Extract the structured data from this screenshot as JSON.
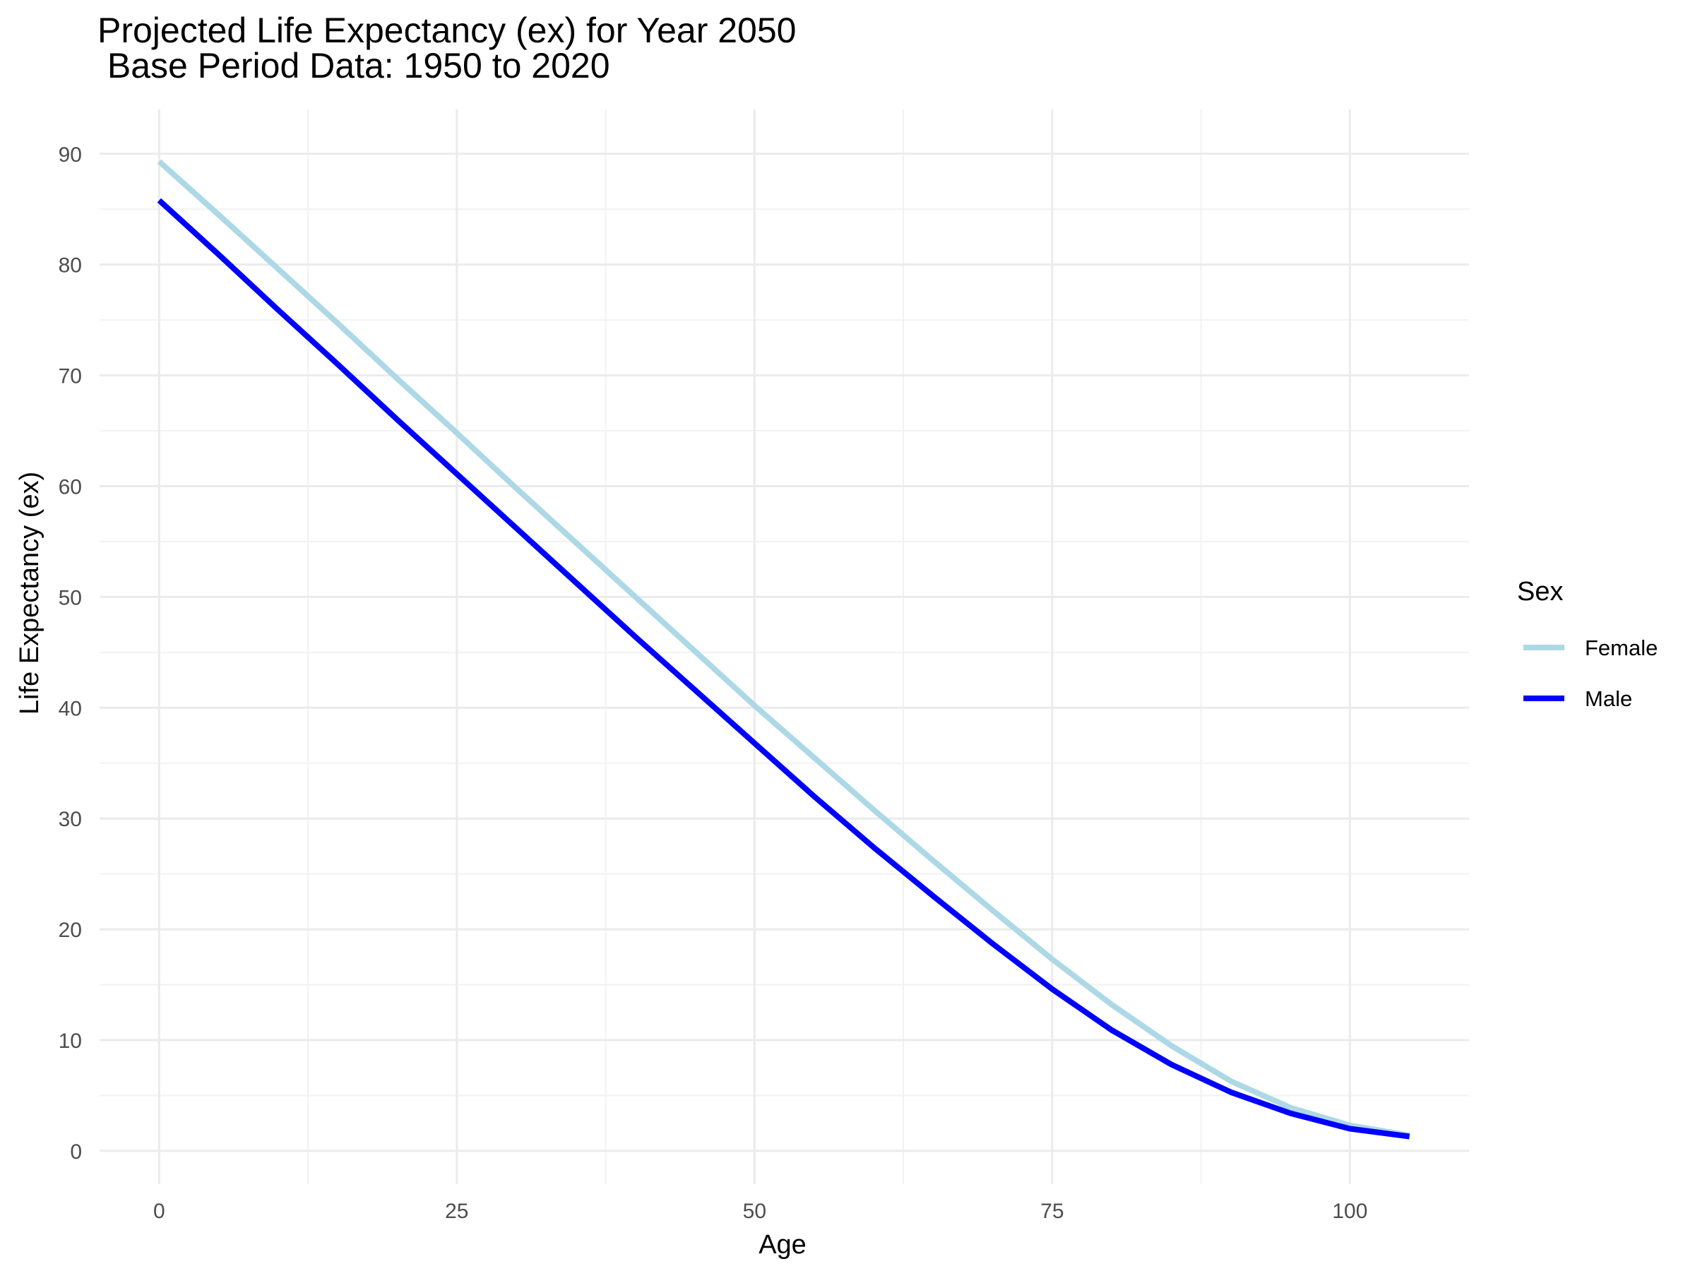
{
  "chart_data": {
    "type": "line",
    "title": "Projected Life Expectancy (ex) for Year 2050",
    "subtitle": " Base Period Data: 1950 to 2020",
    "xlabel": "Age",
    "ylabel": "Life Expectancy (ex)",
    "xlim": [
      -5,
      110
    ],
    "ylim": [
      -3,
      94
    ],
    "x_ticks": [
      0,
      25,
      50,
      75,
      100
    ],
    "y_ticks": [
      0,
      10,
      20,
      30,
      40,
      50,
      60,
      70,
      80,
      90
    ],
    "grid": true,
    "legend": {
      "title": "Sex",
      "position": "right"
    },
    "x": [
      0,
      5,
      10,
      15,
      20,
      25,
      30,
      35,
      40,
      45,
      50,
      55,
      60,
      65,
      70,
      75,
      80,
      85,
      90,
      95,
      100,
      105
    ],
    "series": [
      {
        "name": "Female",
        "color": "#add8e6",
        "values": [
          89.3,
          84.5,
          79.6,
          74.7,
          69.7,
          64.8,
          59.8,
          54.9,
          50.0,
          45.1,
          40.2,
          35.5,
          30.8,
          26.2,
          21.7,
          17.3,
          13.2,
          9.5,
          6.3,
          3.9,
          2.3,
          1.4
        ]
      },
      {
        "name": "Male",
        "color": "#0000ff",
        "values": [
          85.8,
          80.9,
          75.9,
          71.0,
          66.0,
          61.1,
          56.2,
          51.3,
          46.4,
          41.6,
          36.8,
          32.0,
          27.4,
          23.0,
          18.7,
          14.6,
          10.9,
          7.8,
          5.3,
          3.4,
          2.0,
          1.3
        ]
      }
    ]
  }
}
